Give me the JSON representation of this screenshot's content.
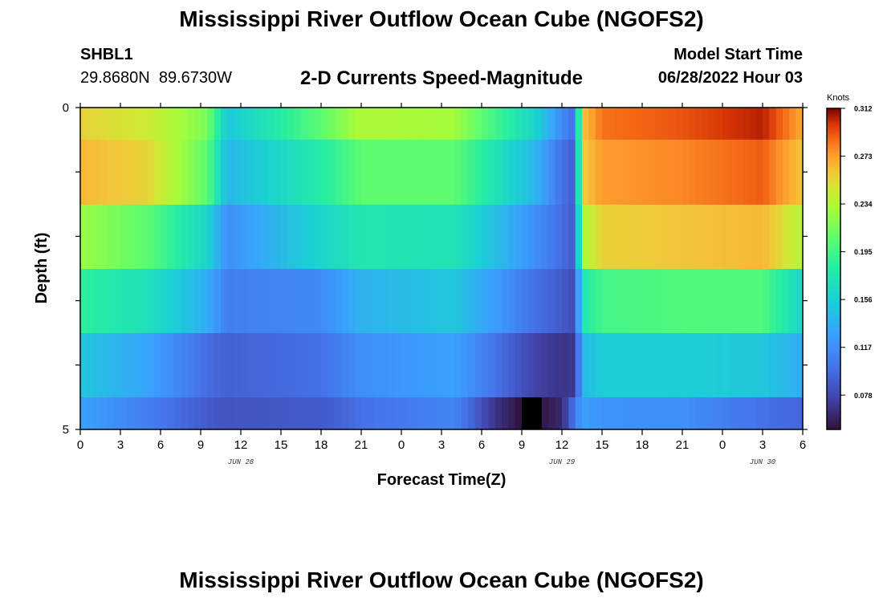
{
  "header": {
    "title": "Mississippi River Outflow Ocean Cube (NGOFS2)",
    "station_id": "SHBL1",
    "station_coords": "29.8680N  89.6730W",
    "subtitle": "2-D Currents Speed-Magnitude",
    "model_start_label": "Model Start Time",
    "model_start_value": "06/28/2022 Hour 03"
  },
  "footer": {
    "title": "Mississippi River Outflow Ocean Cube (NGOFS2)"
  },
  "chart_data": {
    "type": "heatmap",
    "xlabel": "Forecast Time(Z)",
    "ylabel": "Depth (ft)",
    "x_range_hours": [
      0,
      54
    ],
    "ylim": [
      0,
      5
    ],
    "x_tick_labels": [
      "0",
      "3",
      "6",
      "9",
      "12",
      "15",
      "18",
      "21",
      "0",
      "3",
      "6",
      "9",
      "12",
      "15",
      "18",
      "21",
      "0",
      "3",
      "6"
    ],
    "y_tick_labels": [
      "0",
      "5"
    ],
    "date_labels": [
      {
        "label": "JUN 28",
        "hour": 12
      },
      {
        "label": "JUN 29",
        "hour": 36
      },
      {
        "label": "JUN 30",
        "hour": 51
      }
    ],
    "colorbar": {
      "unit": "Knots",
      "ticks": [
        "0.312",
        "0.273",
        "0.234",
        "0.195",
        "0.156",
        "0.117",
        "0.078"
      ],
      "min": 0.05,
      "max": 0.312
    },
    "layers": [
      {
        "x": [
          0,
          5,
          9.5,
          11,
          18,
          21,
          28,
          34,
          36,
          37,
          37.5,
          39,
          45,
          51,
          54
        ],
        "v": [
          0.255,
          0.245,
          0.215,
          0.15,
          0.205,
          0.232,
          0.228,
          0.16,
          0.115,
          0.098,
          0.26,
          0.285,
          0.292,
          0.305,
          0.27
        ]
      },
      {
        "x": [
          0,
          5,
          9.5,
          11,
          18,
          21,
          28,
          34,
          36,
          37,
          37.5,
          39,
          45,
          51,
          54
        ],
        "v": [
          0.265,
          0.255,
          0.205,
          0.14,
          0.18,
          0.205,
          0.205,
          0.14,
          0.1,
          0.09,
          0.255,
          0.275,
          0.28,
          0.29,
          0.26
        ]
      },
      {
        "x": [
          0,
          5,
          9.5,
          11,
          18,
          21,
          28,
          34,
          36,
          37,
          37.5,
          39,
          45,
          51,
          54
        ],
        "v": [
          0.225,
          0.205,
          0.16,
          0.118,
          0.16,
          0.175,
          0.172,
          0.118,
          0.098,
          0.088,
          0.23,
          0.255,
          0.26,
          0.265,
          0.235
        ]
      },
      {
        "x": [
          0,
          5,
          9.5,
          11,
          18,
          21,
          28,
          34,
          36,
          37,
          37.5,
          39,
          45,
          51,
          54
        ],
        "v": [
          0.185,
          0.17,
          0.135,
          0.108,
          0.115,
          0.138,
          0.15,
          0.1,
          0.088,
          0.08,
          0.175,
          0.195,
          0.2,
          0.2,
          0.16
        ]
      },
      {
        "x": [
          0,
          5,
          9.5,
          11,
          18,
          21,
          28,
          34,
          36,
          37,
          37.5,
          39,
          45,
          51,
          54
        ],
        "v": [
          0.15,
          0.13,
          0.098,
          0.092,
          0.1,
          0.118,
          0.128,
          0.075,
          0.068,
          0.07,
          0.14,
          0.155,
          0.155,
          0.15,
          0.135
        ]
      },
      {
        "x": [
          0,
          5,
          9.5,
          11,
          18,
          21,
          28,
          31,
          33,
          34,
          36,
          37.5,
          39,
          45,
          51,
          54
        ],
        "v": [
          0.128,
          0.108,
          0.088,
          0.085,
          0.088,
          0.1,
          0.112,
          0.068,
          0.05,
          0.05,
          0.062,
          0.128,
          0.12,
          0.118,
          0.1,
          0.095
        ]
      }
    ]
  }
}
